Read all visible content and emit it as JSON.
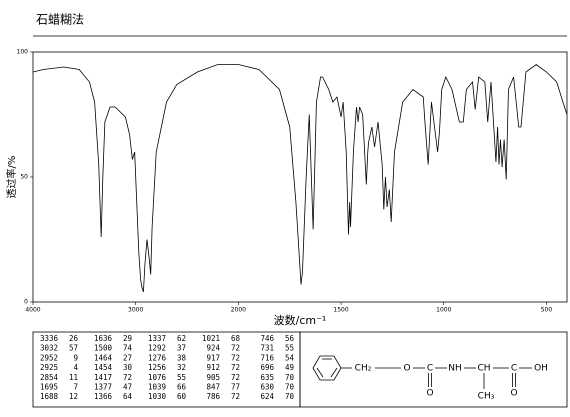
{
  "title": "石蜡糊法",
  "chart_data": {
    "type": "line",
    "xlabel": "波数/cm⁻¹",
    "ylabel": "透过率/%",
    "color": "#000000",
    "xlim": [
      4000,
      400
    ],
    "x_scale_change_at": 2000,
    "xticks": [
      4000,
      3000,
      2000,
      1500,
      1000,
      500
    ],
    "ylim": [
      0,
      100
    ],
    "yticks": [
      0,
      50,
      100
    ],
    "x": [
      4000,
      3900,
      3700,
      3550,
      3450,
      3400,
      3360,
      3336,
      3320,
      3300,
      3250,
      3200,
      3100,
      3060,
      3032,
      3010,
      2990,
      2970,
      2952,
      2940,
      2925,
      2910,
      2890,
      2870,
      2854,
      2840,
      2800,
      2700,
      2600,
      2400,
      2200,
      2000,
      1900,
      1800,
      1750,
      1720,
      1695,
      1688,
      1670,
      1655,
      1636,
      1620,
      1600,
      1590,
      1560,
      1540,
      1520,
      1500,
      1490,
      1475,
      1464,
      1458,
      1454,
      1440,
      1425,
      1417,
      1410,
      1395,
      1377,
      1370,
      1366,
      1350,
      1337,
      1320,
      1300,
      1292,
      1284,
      1276,
      1265,
      1256,
      1240,
      1200,
      1150,
      1100,
      1090,
      1076,
      1060,
      1039,
      1030,
      1021,
      1010,
      990,
      960,
      924,
      917,
      912,
      905,
      890,
      860,
      847,
      830,
      800,
      786,
      770,
      746,
      738,
      731,
      724,
      716,
      706,
      696,
      685,
      660,
      635,
      630,
      624,
      600,
      550,
      500,
      450,
      420,
      400
    ],
    "values": [
      92,
      93,
      94,
      93,
      88,
      80,
      55,
      26,
      50,
      72,
      78,
      78,
      74,
      67,
      57,
      60,
      40,
      20,
      9,
      6,
      4,
      15,
      25,
      18,
      11,
      30,
      60,
      80,
      87,
      92,
      95,
      95,
      93,
      85,
      70,
      40,
      7,
      12,
      50,
      75,
      29,
      80,
      90,
      90,
      85,
      80,
      82,
      74,
      80,
      60,
      27,
      40,
      30,
      60,
      78,
      72,
      78,
      75,
      47,
      60,
      64,
      70,
      62,
      72,
      55,
      37,
      50,
      38,
      45,
      32,
      60,
      80,
      85,
      82,
      70,
      55,
      80,
      66,
      60,
      68,
      85,
      90,
      85,
      72,
      72,
      72,
      72,
      85,
      88,
      77,
      90,
      88,
      72,
      88,
      56,
      70,
      55,
      65,
      54,
      65,
      49,
      85,
      90,
      70,
      70,
      70,
      92,
      95,
      92,
      88,
      80,
      75
    ],
    "peak_table": {
      "wavenumbers": [
        3336,
        3032,
        2952,
        2925,
        2854,
        1695,
        1688,
        1636,
        1500,
        1464,
        1454,
        1417,
        1377,
        1366,
        1337,
        1292,
        1276,
        1256,
        1076,
        1039,
        1030,
        1021,
        924,
        917,
        912,
        905,
        847,
        786,
        746,
        731,
        716,
        696,
        635,
        630,
        624
      ],
      "transmittance": [
        26,
        57,
        9,
        4,
        11,
        7,
        12,
        29,
        74,
        27,
        30,
        72,
        47,
        64,
        62,
        37,
        38,
        32,
        55,
        66,
        60,
        68,
        72,
        72,
        72,
        72,
        77,
        72,
        56,
        55,
        54,
        49,
        70,
        70,
        70
      ]
    }
  },
  "structure": {
    "labels": [
      "CH₂",
      "O",
      "C",
      "NH",
      "CH",
      "C",
      "OH",
      "O",
      "CH₃",
      "O"
    ]
  }
}
